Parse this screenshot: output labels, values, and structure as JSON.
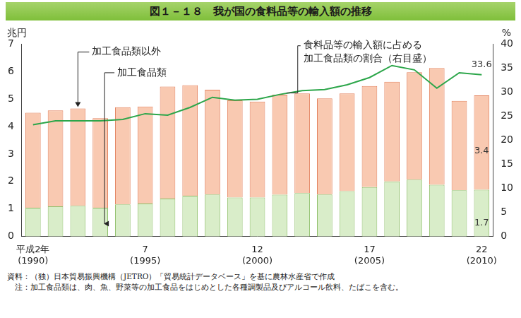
{
  "chart_data": {
    "type": "bar",
    "title": "図１－１８　我が国の食料品等の輸入額の推移",
    "ylabel": "兆円",
    "y2label": "%",
    "notes": [
      "資料：（独）日本貿易振興機構（JETRO）「貿易統計データベース」を基に農林水産省で作成",
      "　注：加工食品類は、肉、魚、野菜等の加工食品をはじめとした各種調製品及びアルコール飲料、たばこを含む。"
    ],
    "categories": [
      "平成2年\n(1990)",
      null,
      null,
      null,
      null,
      "7\n(1995)",
      null,
      null,
      null,
      null,
      "12\n(2000)",
      null,
      null,
      null,
      null,
      "17\n(2005)",
      null,
      null,
      null,
      null,
      "22\n(2010)"
    ],
    "stacked": true,
    "grid": false,
    "data_labels": true,
    "series": [
      {
        "name": "加工食品類",
        "type": "bar",
        "color": "#d9edc9",
        "values": [
          1.05,
          1.1,
          1.12,
          1.05,
          1.17,
          1.2,
          1.38,
          1.48,
          1.53,
          1.42,
          1.42,
          1.52,
          1.58,
          1.53,
          1.65,
          1.8,
          2.0,
          2.07,
          1.88,
          1.68,
          1.7
        ],
        "value_labels": [
          null,
          null,
          null,
          null,
          null,
          null,
          null,
          null,
          null,
          null,
          null,
          null,
          null,
          null,
          null,
          null,
          null,
          null,
          null,
          null,
          "1.7"
        ]
      },
      {
        "name": "加工食品類以外",
        "type": "bar",
        "color": "#f9c9b1",
        "values": [
          3.45,
          3.48,
          3.53,
          3.25,
          3.53,
          3.52,
          4.07,
          4.02,
          3.8,
          3.53,
          3.48,
          3.63,
          3.62,
          3.49,
          3.55,
          3.67,
          3.62,
          3.9,
          4.24,
          3.25,
          3.43
        ],
        "value_labels": [
          null,
          null,
          null,
          null,
          null,
          null,
          null,
          null,
          null,
          null,
          null,
          null,
          null,
          null,
          null,
          null,
          null,
          null,
          null,
          null,
          "3.4"
        ]
      },
      {
        "name": "食料品等の輸入額に占める\n加工食品類の割合（右目盛）",
        "type": "line",
        "axis": "y2",
        "color": "#2ca64a",
        "marker": "none",
        "values": [
          23.2,
          24.0,
          24.0,
          24.0,
          24.3,
          25.5,
          25.2,
          26.8,
          28.9,
          28.3,
          28.5,
          29.5,
          30.3,
          30.5,
          31.5,
          33.0,
          35.5,
          34.6,
          30.8,
          34.0,
          33.6
        ],
        "value_labels": [
          null,
          null,
          null,
          null,
          null,
          null,
          null,
          null,
          null,
          null,
          null,
          null,
          null,
          null,
          null,
          null,
          null,
          null,
          null,
          null,
          "33.6"
        ]
      }
    ],
    "ylim": [
      0,
      7
    ],
    "yticks": [
      0,
      1,
      2,
      3,
      4,
      5,
      6,
      7
    ],
    "y2lim": [
      0,
      40
    ],
    "y2ticks": [
      0,
      5,
      10,
      15,
      20,
      25,
      30,
      35,
      40
    ]
  }
}
